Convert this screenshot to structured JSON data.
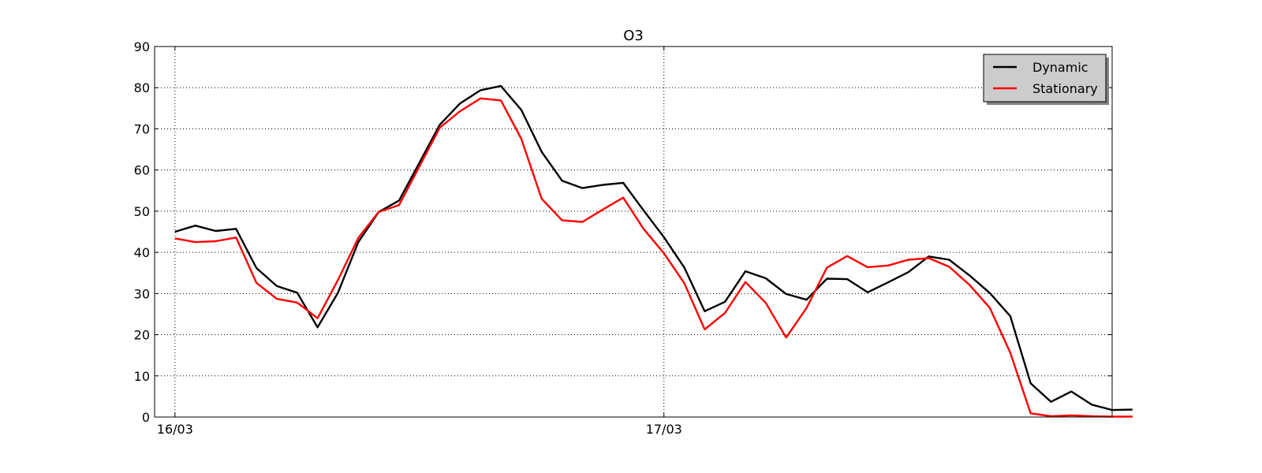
{
  "chart_data": {
    "type": "line",
    "title": "O3",
    "xlabel": "",
    "ylabel": "",
    "ylim": [
      0,
      90
    ],
    "yticks": [
      0,
      10,
      20,
      30,
      40,
      50,
      60,
      70,
      80,
      90
    ],
    "xlim": [
      -1,
      46
    ],
    "xticks": [
      {
        "x": 0,
        "label": "16/03"
      },
      {
        "x": 24,
        "label": "17/03"
      }
    ],
    "grid": true,
    "legend_position": "top-right",
    "series": [
      {
        "name": "Dynamic",
        "color": "#000000",
        "values": [
          45.0,
          46.5,
          45.2,
          45.7,
          36.2,
          31.8,
          30.2,
          21.8,
          30.2,
          42.5,
          49.8,
          52.6,
          61.8,
          71.0,
          76.2,
          79.4,
          80.4,
          74.6,
          64.4,
          57.4,
          55.6,
          56.4,
          56.9,
          50.2,
          43.7,
          36.3,
          25.7,
          28.0,
          35.4,
          33.7,
          29.9,
          28.5,
          33.6,
          33.5,
          30.3,
          32.7,
          35.2,
          39.0,
          38.2,
          34.4,
          30.1,
          24.5,
          8.2,
          3.7,
          6.2,
          3.0,
          1.7,
          1.8
        ]
      },
      {
        "name": "Stationary",
        "color": "#ff0000",
        "values": [
          43.4,
          42.5,
          42.7,
          43.6,
          32.6,
          28.7,
          27.8,
          24.0,
          33.3,
          43.5,
          49.8,
          51.5,
          60.9,
          70.3,
          74.3,
          77.4,
          76.9,
          67.6,
          53.0,
          47.8,
          47.4,
          50.4,
          53.3,
          45.7,
          39.8,
          32.5,
          21.3,
          25.3,
          32.8,
          27.7,
          19.3,
          26.5,
          36.3,
          39.1,
          36.4,
          36.8,
          38.2,
          38.6,
          36.5,
          32.1,
          26.5,
          15.6,
          0.9,
          0.2,
          0.4,
          0.2,
          0.1,
          0.1
        ]
      }
    ]
  }
}
